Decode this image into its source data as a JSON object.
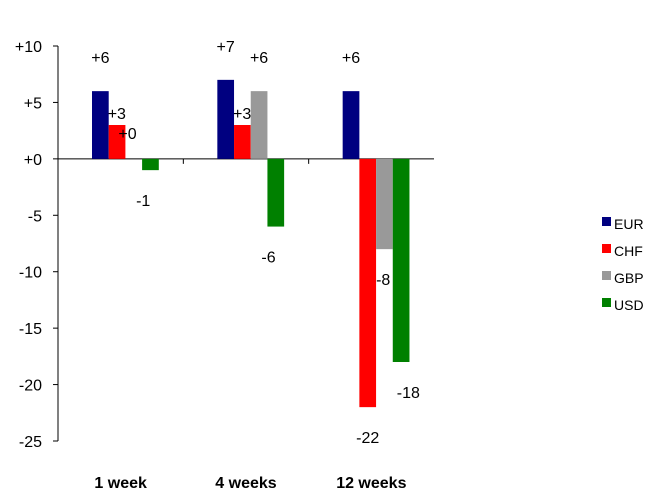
{
  "chart_data": {
    "type": "bar",
    "categories": [
      "1 week",
      "4 weeks",
      "12 weeks"
    ],
    "series": [
      {
        "name": "EUR",
        "color": "#000080",
        "values": [
          6,
          7,
          6
        ],
        "labels": [
          "+6",
          "+7",
          "+6"
        ]
      },
      {
        "name": "CHF",
        "color": "#ff0000",
        "values": [
          3,
          3,
          -22
        ],
        "labels": [
          "+3",
          "+3",
          "-22"
        ]
      },
      {
        "name": "GBP",
        "color": "#999999",
        "values": [
          0,
          6,
          -8
        ],
        "labels": [
          "+0",
          "+6",
          "-8"
        ]
      },
      {
        "name": "USD",
        "color": "#008000",
        "values": [
          -1,
          -6,
          -18
        ],
        "labels": [
          "-1",
          "-6",
          "-18"
        ]
      }
    ],
    "yticks": [
      10,
      5,
      0,
      -5,
      -10,
      -15,
      -20,
      -25
    ],
    "ytick_labels": [
      "+10",
      "+5",
      "+0",
      "-5",
      "-10",
      "-15",
      "-20",
      "-25"
    ],
    "ylim": [
      -25,
      10
    ],
    "grid": false,
    "legend": "right",
    "title": "",
    "xlabel": "",
    "ylabel": ""
  }
}
